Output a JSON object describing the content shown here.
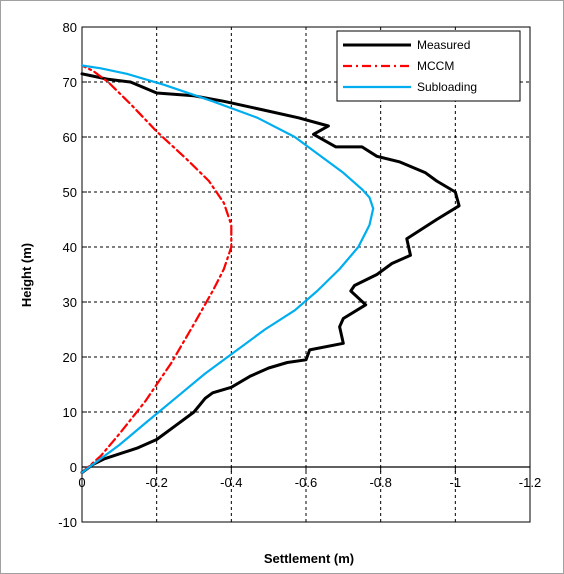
{
  "chart_data": {
    "type": "line",
    "title": "",
    "xlabel": "Settlement (m)",
    "ylabel": "Height (m)",
    "xlim": [
      0,
      -1.2
    ],
    "ylim": [
      -10,
      80
    ],
    "xticks": [
      0,
      -0.2,
      -0.4,
      -0.6,
      -0.8,
      -1,
      -1.2
    ],
    "xtick_labels": [
      "0",
      "-0.2",
      "-0.4",
      "-0.6",
      "-0.8",
      "-1",
      "-1.2"
    ],
    "yticks": [
      -10,
      0,
      10,
      20,
      30,
      40,
      50,
      60,
      70,
      80
    ],
    "ytick_labels": [
      "-10",
      "0",
      "10",
      "20",
      "30",
      "40",
      "50",
      "60",
      "70",
      "80"
    ],
    "grid": true,
    "legend": "top-right",
    "series": [
      {
        "name": "Measured",
        "color": "#000000",
        "style": "solid",
        "points": [
          [
            0,
            -1
          ],
          [
            -0.03,
            0.5
          ],
          [
            -0.06,
            1.5
          ],
          [
            -0.15,
            3.5
          ],
          [
            -0.2,
            5
          ],
          [
            -0.25,
            7.5
          ],
          [
            -0.3,
            10
          ],
          [
            -0.33,
            12.5
          ],
          [
            -0.35,
            13.5
          ],
          [
            -0.4,
            14.5
          ],
          [
            -0.45,
            16.5
          ],
          [
            -0.5,
            18
          ],
          [
            -0.55,
            19
          ],
          [
            -0.6,
            19.5
          ],
          [
            -0.61,
            21.3
          ],
          [
            -0.7,
            22.5
          ],
          [
            -0.69,
            25.5
          ],
          [
            -0.7,
            27
          ],
          [
            -0.76,
            29.5
          ],
          [
            -0.72,
            32
          ],
          [
            -0.73,
            33
          ],
          [
            -0.79,
            35
          ],
          [
            -0.83,
            37
          ],
          [
            -0.88,
            38.5
          ],
          [
            -0.87,
            41.5
          ],
          [
            -0.95,
            45
          ],
          [
            -1.01,
            47.5
          ],
          [
            -1.0,
            50
          ],
          [
            -0.95,
            52
          ],
          [
            -0.92,
            53.5
          ],
          [
            -0.85,
            55.5
          ],
          [
            -0.79,
            56.5
          ],
          [
            -0.75,
            58.2
          ],
          [
            -0.68,
            58.2
          ],
          [
            -0.62,
            60.5
          ],
          [
            -0.66,
            62
          ],
          [
            -0.58,
            63.5
          ],
          [
            -0.48,
            65
          ],
          [
            -0.38,
            66.5
          ],
          [
            -0.3,
            67.5
          ],
          [
            -0.2,
            68
          ],
          [
            -0.13,
            70
          ],
          [
            -0.07,
            70.5
          ],
          [
            -0.02,
            71.2
          ],
          [
            0,
            71.5
          ]
        ]
      },
      {
        "name": "MCCM",
        "color": "#ff0000",
        "style": "dashdot",
        "points": [
          [
            0,
            -1
          ],
          [
            -0.05,
            2
          ],
          [
            -0.1,
            6
          ],
          [
            -0.17,
            12
          ],
          [
            -0.24,
            19
          ],
          [
            -0.3,
            26
          ],
          [
            -0.35,
            32
          ],
          [
            -0.38,
            36
          ],
          [
            -0.4,
            40
          ],
          [
            -0.4,
            44
          ],
          [
            -0.38,
            48
          ],
          [
            -0.34,
            52
          ],
          [
            -0.28,
            56
          ],
          [
            -0.2,
            61
          ],
          [
            -0.13,
            66
          ],
          [
            -0.07,
            70
          ],
          [
            -0.03,
            72
          ],
          [
            0,
            73
          ]
        ]
      },
      {
        "name": "Subloading",
        "color": "#00aeef",
        "style": "solid",
        "points": [
          [
            0,
            -1
          ],
          [
            -0.05,
            1.5
          ],
          [
            -0.1,
            4
          ],
          [
            -0.17,
            8
          ],
          [
            -0.25,
            12.5
          ],
          [
            -0.33,
            17
          ],
          [
            -0.41,
            21
          ],
          [
            -0.49,
            25
          ],
          [
            -0.57,
            28.5
          ],
          [
            -0.63,
            32
          ],
          [
            -0.69,
            36
          ],
          [
            -0.74,
            40
          ],
          [
            -0.77,
            44
          ],
          [
            -0.78,
            47
          ],
          [
            -0.77,
            49
          ],
          [
            -0.75,
            50.5
          ],
          [
            -0.7,
            53.5
          ],
          [
            -0.64,
            56.5
          ],
          [
            -0.57,
            60
          ],
          [
            -0.47,
            63.5
          ],
          [
            -0.35,
            66.5
          ],
          [
            -0.22,
            69.5
          ],
          [
            -0.12,
            71.5
          ],
          [
            -0.05,
            72.5
          ],
          [
            0,
            73
          ]
        ]
      }
    ]
  }
}
